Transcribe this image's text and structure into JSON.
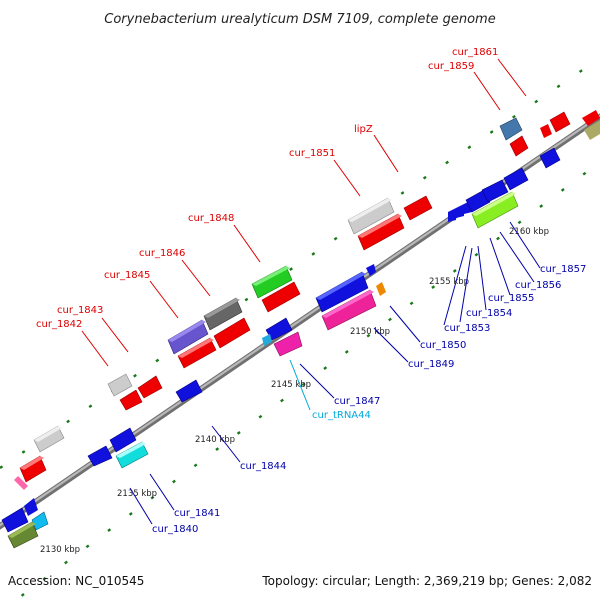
{
  "title": "Corynebacterium urealyticum DSM 7109, complete genome",
  "footer": {
    "accession": "Accession: NC_010545",
    "summary": "Topology: circular; Length: 2,369,219 bp; Genes: 2,082"
  },
  "ruler": [
    "2130 kbp",
    "2135 kbp",
    "2140 kbp",
    "2145 kbp",
    "2150 kbp",
    "2155 kbp",
    "2160 kbp"
  ],
  "labels_top": [
    "cur_1842",
    "cur_1843",
    "cur_1845",
    "cur_1846",
    "cur_1848",
    "cur_1851",
    "lipZ",
    "cur_1859",
    "cur_1861"
  ],
  "labels_bottom": [
    "cur_1840",
    "cur_1841",
    "cur_1844",
    "cur_tRNA44",
    "cur_1847",
    "cur_1849",
    "cur_1850",
    "cur_1853",
    "cur_1854",
    "cur_1855",
    "cur_1856",
    "cur_1857"
  ],
  "colors": {
    "forward_label": "#dd0000",
    "reverse_label": "#0000aa",
    "trna_label": "#00aadd",
    "backbone": "#8a8a8a",
    "tick": "#1a7a1a"
  }
}
